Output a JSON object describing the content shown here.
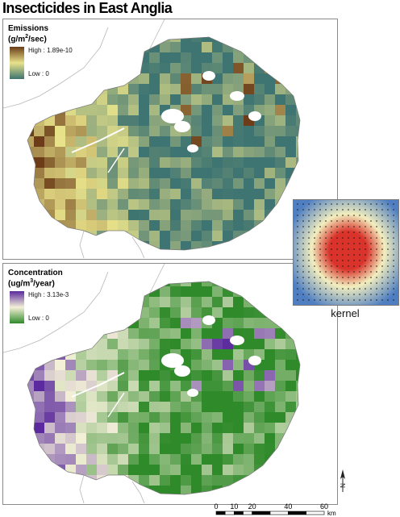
{
  "title": "Insecticides in East Anglia",
  "panels": {
    "emissions": {
      "legend_title": "Emissions",
      "units_prefix": "(g/m",
      "units_exp": "2",
      "units_suffix": "/sec)",
      "high_label": "High : 1.89e-10",
      "low_label": "Low : 0",
      "colors": {
        "high": "#6b3c17",
        "mid": "#e8e28a",
        "low": "#3e7471"
      }
    },
    "concentration": {
      "legend_title": "Concentration",
      "units_prefix": "(ug/m",
      "units_exp": "3",
      "units_suffix": "/year)",
      "high_label": "High : 3.13e-3",
      "low_label": "Low : 0",
      "colors": {
        "high": "#5a2a9e",
        "mid": "#f4f0d8",
        "low": "#2f8a2a"
      }
    }
  },
  "kernel": {
    "caption": "kernel",
    "colors": {
      "outer": "#4f7fc2",
      "mid": "#f2eebe",
      "inner": "#d9332b"
    }
  },
  "scale": {
    "ticks": [
      "0",
      "10",
      "20",
      "40",
      "60"
    ],
    "unit": "km"
  },
  "north_arrow": {
    "label": "N"
  }
}
